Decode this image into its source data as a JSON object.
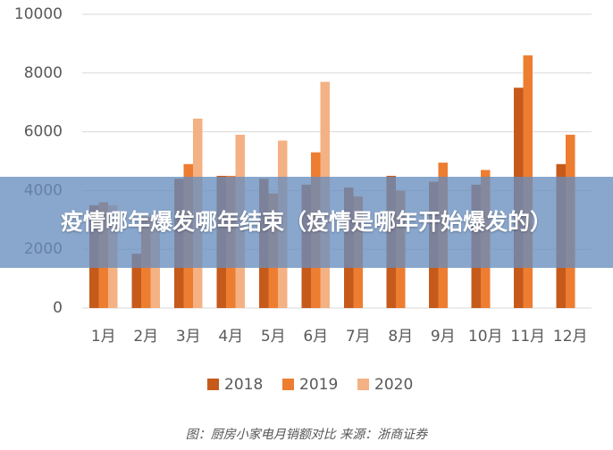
{
  "chart_data": {
    "type": "bar",
    "title": "疫情哪年爆发哪年结束（疫情是哪年开始爆发的）",
    "caption": "图：厨房小家电月销额对比 来源：浙商证券",
    "categories": [
      "1月",
      "2月",
      "3月",
      "4月",
      "5月",
      "6月",
      "7月",
      "8月",
      "9月",
      "10月",
      "11月",
      "12月"
    ],
    "series": [
      {
        "name": "2018",
        "color": "#c55a1b",
        "values": [
          3500,
          1850,
          4400,
          4500,
          4400,
          4200,
          4100,
          4500,
          4300,
          4200,
          7500,
          4900
        ]
      },
      {
        "name": "2019",
        "color": "#ed7d31",
        "values": [
          3600,
          3100,
          4900,
          4500,
          3900,
          5300,
          3800,
          4000,
          4950,
          4700,
          8600,
          5900
        ]
      },
      {
        "name": "2020",
        "color": "#f4b183",
        "values": [
          3500,
          3200,
          6450,
          5900,
          5700,
          7700,
          null,
          null,
          null,
          null,
          null,
          null
        ]
      }
    ],
    "ylim": [
      0,
      10000
    ],
    "yticks": [
      0,
      2000,
      4000,
      6000,
      8000,
      10000
    ],
    "grid": true
  }
}
